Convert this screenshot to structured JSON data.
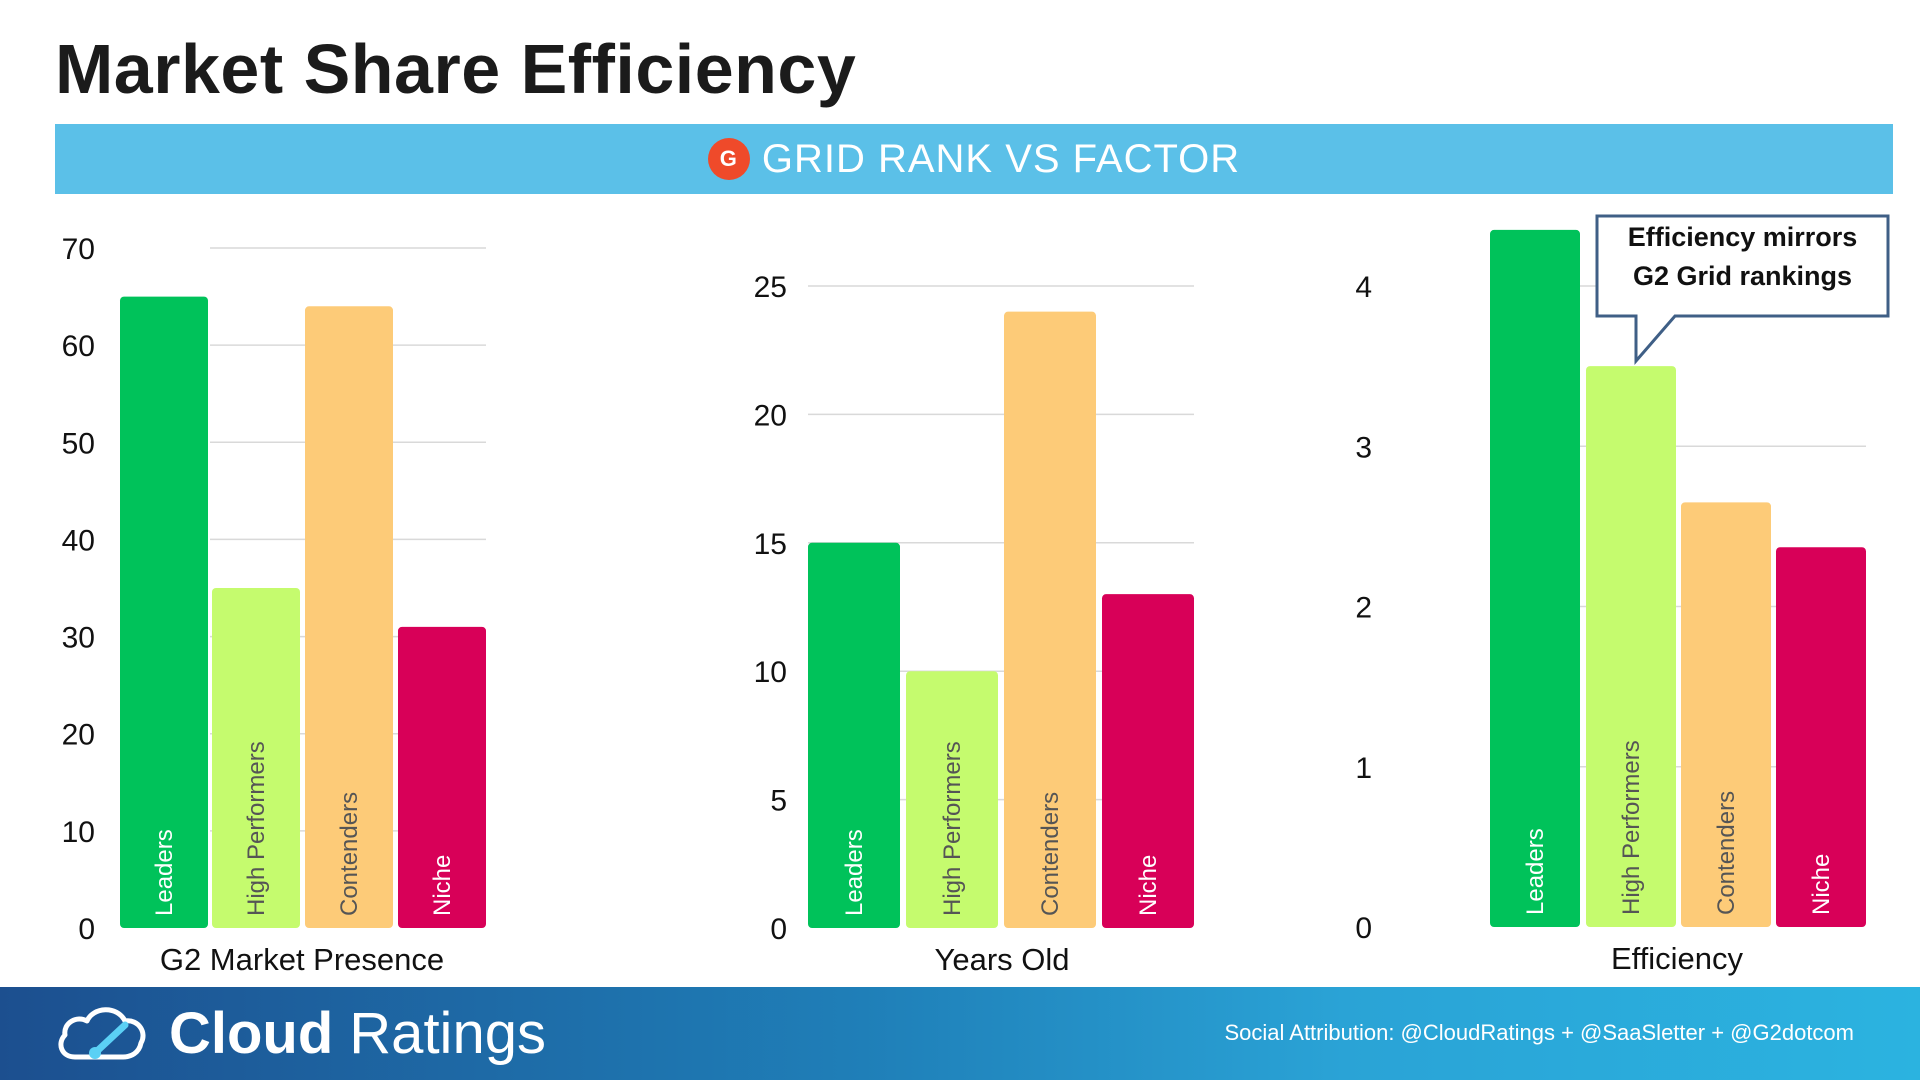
{
  "header": {
    "title": "Market Share Efficiency"
  },
  "banner": {
    "logo": "G",
    "text": "GRID RANK VS FACTOR"
  },
  "colors": {
    "leaders": "#00c25a",
    "high_performers": "#c5fb6e",
    "contenders": "#fdcb78",
    "niche": "#d80058",
    "banner": "#5bc0e8"
  },
  "callout": {
    "line1": "Efficiency mirrors",
    "line2": "G2 Grid rankings"
  },
  "footer": {
    "brand_bold": "Cloud",
    "brand_light": "Ratings",
    "attribution": "Social Attribution: @CloudRatings + @SaaSletter + @G2dotcom"
  },
  "chart_data": [
    {
      "type": "bar",
      "xlabel": "G2 Market Presence",
      "categories": [
        "Leaders",
        "High Performers",
        "Contenders",
        "Niche"
      ],
      "values": [
        65,
        35,
        64,
        31
      ],
      "ylim": [
        0,
        70
      ],
      "yticks": [
        "0",
        "10",
        "20",
        "30",
        "40",
        "50",
        "60",
        "70"
      ],
      "grid": true
    },
    {
      "type": "bar",
      "xlabel": "Years Old",
      "categories": [
        "Leaders",
        "High Performers",
        "Contenders",
        "Niche"
      ],
      "values": [
        15,
        10,
        24,
        13
      ],
      "ylim": [
        0,
        25
      ],
      "yticks": [
        "0",
        "5",
        "10",
        "15",
        "20",
        "25"
      ],
      "grid": true
    },
    {
      "type": "bar",
      "xlabel": "Efficiency",
      "categories": [
        "Leaders",
        "High Performers",
        "Contenders",
        "Niche"
      ],
      "values": [
        4.35,
        3.5,
        2.65,
        2.37
      ],
      "ylim": [
        0,
        4
      ],
      "yticks": [
        "0",
        "1",
        "2",
        "3",
        "4"
      ],
      "grid": true
    }
  ]
}
